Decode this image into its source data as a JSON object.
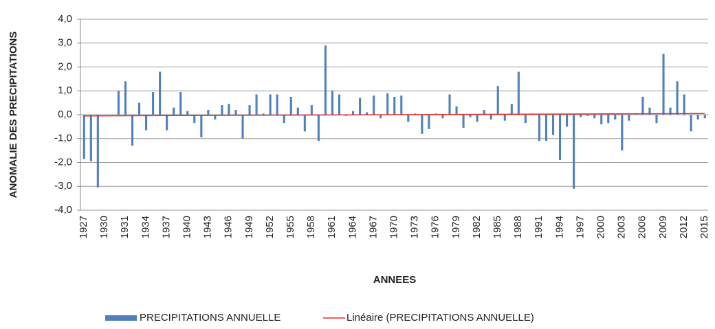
{
  "chart_data": {
    "type": "bar",
    "y_label": "ANOMALIE DES  PRECIPITATIONS",
    "x_label": "ANNEES",
    "categories": [
      "1927",
      null,
      null,
      "1930",
      null,
      null,
      "1931",
      null,
      null,
      "1934",
      null,
      null,
      "1937",
      null,
      null,
      "1940",
      null,
      null,
      "1943",
      null,
      null,
      "1946",
      null,
      null,
      "1949",
      null,
      null,
      "1952",
      null,
      null,
      "1955",
      null,
      null,
      "1958",
      null,
      null,
      "1961",
      null,
      null,
      "1964",
      null,
      null,
      "1967",
      null,
      null,
      "1970",
      null,
      null,
      "1973",
      null,
      null,
      "1976",
      null,
      null,
      "1979",
      null,
      null,
      "1982",
      null,
      null,
      "1985",
      null,
      null,
      "1988",
      null,
      null,
      "1991",
      null,
      null,
      "1994",
      null,
      null,
      "1997",
      null,
      null,
      "2000",
      null,
      null,
      "2003",
      null,
      null,
      "2006",
      null,
      null,
      "2009",
      null,
      null,
      "2012",
      null,
      null,
      "2015"
    ],
    "series": [
      {
        "name": "PRECIPITATIONS ANNUELLE",
        "color": "#4f81bd",
        "values": [
          -1.85,
          -1.95,
          -3.05,
          0,
          0,
          1.0,
          1.4,
          -1.3,
          0.5,
          -0.65,
          0.95,
          1.8,
          -0.65,
          0.3,
          0.95,
          0.15,
          -0.35,
          -0.95,
          0.2,
          -0.2,
          0.4,
          0.45,
          0.2,
          -1.0,
          0.4,
          0.85,
          0.05,
          0.85,
          0.85,
          -0.35,
          0.75,
          0.3,
          -0.7,
          0.4,
          -1.1,
          2.9,
          1.0,
          0.85,
          -0.05,
          0.15,
          0.7,
          0.1,
          0.8,
          -0.15,
          0.9,
          0.75,
          0.8,
          -0.3,
          0.05,
          -0.8,
          -0.6,
          0.05,
          -0.15,
          0.85,
          0.35,
          -0.55,
          -0.1,
          -0.3,
          0.2,
          -0.2,
          1.2,
          -0.25,
          0.45,
          1.8,
          -0.35,
          0.05,
          -1.1,
          -1.1,
          -0.85,
          -1.9,
          -0.5,
          -3.1,
          -0.1,
          -0.05,
          -0.15,
          -0.4,
          -0.35,
          -0.2,
          -1.5,
          -0.25,
          0.05,
          0.75,
          0.3,
          -0.35,
          2.55,
          0.3,
          1.4,
          0.85,
          -0.7,
          -0.2,
          -0.15
        ]
      }
    ],
    "trendline": {
      "name": "Linéaire (PRECIPITATIONS ANNUELLE)",
      "color": "#e0302c",
      "values": [
        -0.05,
        0.05
      ]
    },
    "ylim": [
      -4,
      4
    ],
    "yticks": [
      {
        "value": -4,
        "label": "-4,0"
      },
      {
        "value": -3,
        "label": "-3,0"
      },
      {
        "value": -2,
        "label": "-2,0"
      },
      {
        "value": -1,
        "label": "-1,0"
      },
      {
        "value": 0,
        "label": "0,0"
      },
      {
        "value": 1,
        "label": "1,0"
      },
      {
        "value": 2,
        "label": "2,0"
      },
      {
        "value": 3,
        "label": "3,0"
      },
      {
        "value": 4,
        "label": "4,0"
      }
    ],
    "grid": true,
    "legend": "bottom"
  }
}
